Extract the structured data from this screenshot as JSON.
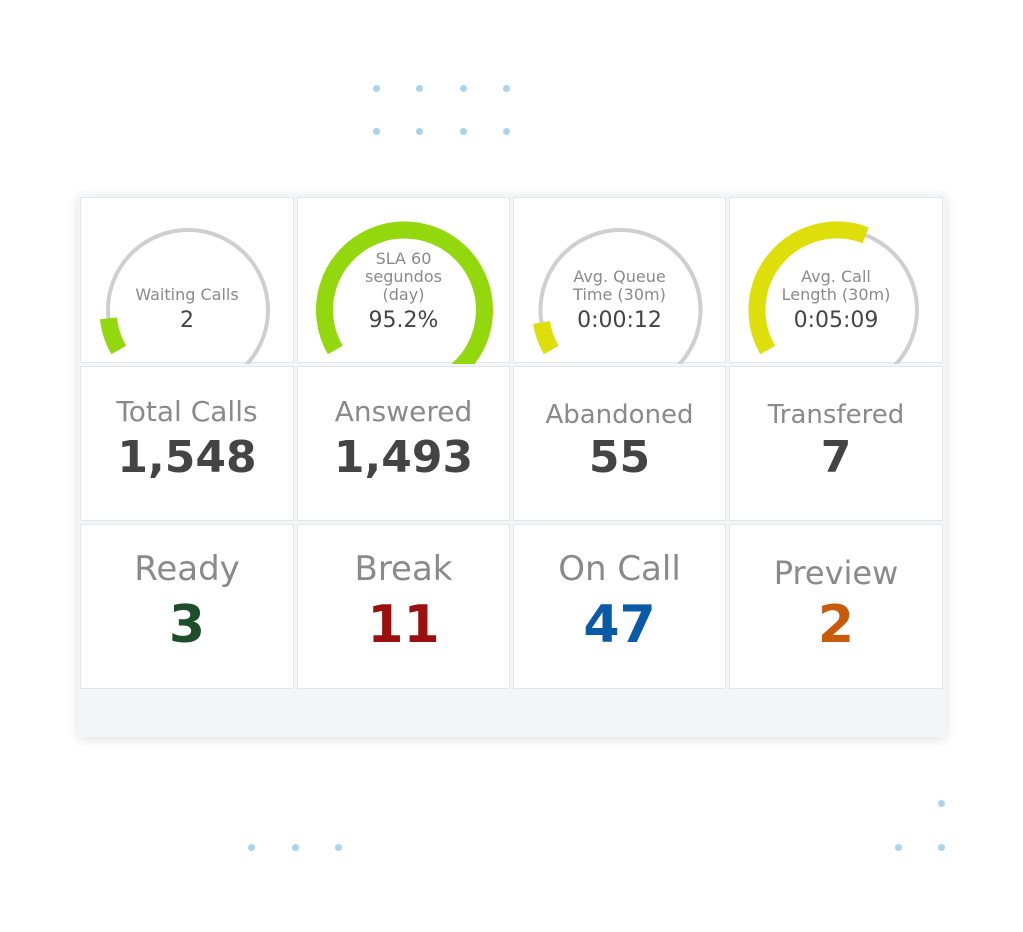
{
  "gauges": [
    {
      "label_lines": [
        "Waiting Calls"
      ],
      "value": "2",
      "fill_fraction": 0.08,
      "color": "#93d70d"
    },
    {
      "label_lines": [
        "SLA 60",
        "segundos",
        "(day)"
      ],
      "value": "95.2%",
      "fill_fraction": 0.952,
      "color": "#93d70d"
    },
    {
      "label_lines": [
        "Avg. Queue",
        "Time (30m)"
      ],
      "value": "0:00:12",
      "fill_fraction": 0.07,
      "color": "#dede0a"
    },
    {
      "label_lines": [
        "Avg. Call",
        "Length (30m)"
      ],
      "value": "0:05:09",
      "fill_fraction": 0.47,
      "color": "#dede0a"
    }
  ],
  "totals": [
    {
      "label": "Total Calls",
      "value": "1,548"
    },
    {
      "label": "Answered",
      "value": "1,493"
    },
    {
      "label": "Abandoned",
      "value": "55"
    },
    {
      "label": "Transfered",
      "value": "7"
    }
  ],
  "agents": [
    {
      "label": "Ready",
      "value": "3",
      "color": "#1e4d2b"
    },
    {
      "label": "Break",
      "value": "11",
      "color": "#9a1010"
    },
    {
      "label": "On Call",
      "value": "47",
      "color": "#0a5aa8"
    },
    {
      "label": "Preview",
      "value": "2",
      "color": "#c85a0c"
    }
  ]
}
